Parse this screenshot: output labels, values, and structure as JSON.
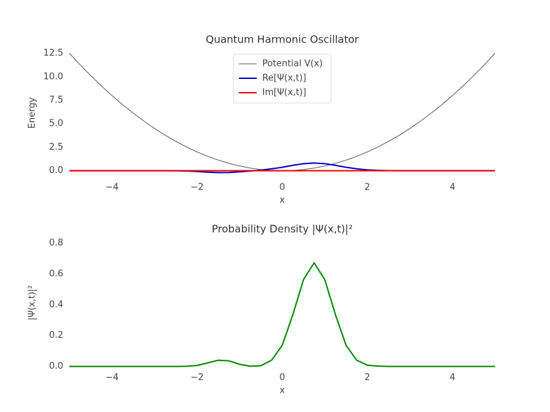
{
  "chart_data": [
    {
      "type": "line",
      "title": "Quantum Harmonic Oscillator",
      "xlabel": "x",
      "ylabel": "Energy",
      "x": [
        -5,
        -4.75,
        -4.5,
        -4.25,
        -4,
        -3.75,
        -3.5,
        -3.25,
        -3,
        -2.75,
        -2.5,
        -2.25,
        -2,
        -1.75,
        -1.5,
        -1.25,
        -1,
        -0.75,
        -0.5,
        -0.25,
        0,
        0.25,
        0.5,
        0.75,
        1,
        1.25,
        1.5,
        1.75,
        2,
        2.25,
        2.5,
        2.75,
        3,
        3.25,
        3.5,
        3.75,
        4,
        4.25,
        4.5,
        4.75,
        5
      ],
      "series": [
        {
          "name": "Potential V(x)",
          "color": "#555555",
          "width": 1,
          "values": [
            12.5,
            11.28,
            10.13,
            9.03,
            8,
            7.03,
            6.13,
            5.28,
            4.5,
            3.78,
            3.13,
            2.53,
            2,
            1.53,
            1.13,
            0.78,
            0.5,
            0.28,
            0.13,
            0.03,
            0,
            0.03,
            0.13,
            0.28,
            0.5,
            0.78,
            1.13,
            1.53,
            2,
            2.53,
            3.13,
            3.78,
            4.5,
            5.28,
            6.13,
            7.03,
            8,
            9.03,
            10.13,
            11.28,
            12.5
          ]
        },
        {
          "name": "Re[Ψ(x,t)]",
          "color": "#0000cc",
          "width": 2,
          "values": [
            0,
            0,
            0,
            0,
            0,
            0,
            0,
            0,
            0,
            0,
            -0.01,
            -0.03,
            -0.08,
            -0.15,
            -0.2,
            -0.19,
            -0.12,
            -0.03,
            0.07,
            0.2,
            0.37,
            0.58,
            0.75,
            0.82,
            0.75,
            0.58,
            0.37,
            0.2,
            0.09,
            0.04,
            0.01,
            0,
            0,
            0,
            0,
            0,
            0,
            0,
            0,
            0,
            0
          ]
        },
        {
          "name": "Im[Ψ(x,t)]",
          "color": "#ee0000",
          "width": 2,
          "values": [
            0,
            0,
            0,
            0,
            0,
            0,
            0,
            0,
            0,
            0,
            0,
            0,
            0,
            0,
            0,
            0,
            0,
            0,
            0,
            0,
            0,
            0,
            0,
            0,
            0,
            0,
            0,
            0,
            0,
            0,
            0,
            0,
            0,
            0,
            0,
            0,
            0,
            0,
            0,
            0,
            0
          ]
        }
      ],
      "xlim": [
        -5,
        5
      ],
      "ylim": [
        -0.83,
        13.13
      ],
      "xticks": [
        {
          "value": -4,
          "label": "−4"
        },
        {
          "value": -2,
          "label": "−2"
        },
        0,
        2,
        4
      ],
      "yticks": [
        {
          "value": 0,
          "label": "0.0"
        },
        {
          "value": 2.5,
          "label": "2.5"
        },
        {
          "value": 5,
          "label": "5.0"
        },
        {
          "value": 7.5,
          "label": "7.5"
        },
        {
          "value": 10,
          "label": "10.0"
        },
        {
          "value": 12.5,
          "label": "12.5"
        }
      ],
      "legend": "upper center",
      "grid": false
    },
    {
      "type": "line",
      "title": "Probability Density |Ψ(x,t)|²",
      "xlabel": "x",
      "ylabel": "|Ψ(x,t)|²",
      "x": [
        -5,
        -4.75,
        -4.5,
        -4.25,
        -4,
        -3.75,
        -3.5,
        -3.25,
        -3,
        -2.75,
        -2.5,
        -2.25,
        -2,
        -1.75,
        -1.5,
        -1.25,
        -1,
        -0.75,
        -0.5,
        -0.25,
        0,
        0.25,
        0.5,
        0.75,
        1,
        1.25,
        1.5,
        1.75,
        2,
        2.25,
        2.5,
        2.75,
        3,
        3.25,
        3.5,
        3.75,
        4,
        4.25,
        4.5,
        4.75,
        5
      ],
      "series": [
        {
          "color": "#008800",
          "width": 2,
          "values": [
            0,
            0,
            0,
            0,
            0,
            0,
            0,
            0,
            0,
            0,
            0,
            0.001,
            0.006,
            0.023,
            0.04,
            0.036,
            0.014,
            0.001,
            0.005,
            0.04,
            0.137,
            0.336,
            0.563,
            0.672,
            0.563,
            0.336,
            0.137,
            0.04,
            0.008,
            0.002,
            0,
            0,
            0,
            0,
            0,
            0,
            0,
            0,
            0,
            0,
            0
          ]
        }
      ],
      "xlim": [
        -5,
        5
      ],
      "ylim": [
        -0.015,
        0.84
      ],
      "xticks": [
        {
          "value": -4,
          "label": "−4"
        },
        {
          "value": -2,
          "label": "−2"
        },
        0,
        2,
        4
      ],
      "yticks": [
        {
          "value": 0,
          "label": "0.0"
        },
        {
          "value": 0.2,
          "label": "0.2"
        },
        {
          "value": 0.4,
          "label": "0.4"
        },
        {
          "value": 0.6,
          "label": "0.6"
        },
        {
          "value": 0.8,
          "label": "0.8"
        }
      ],
      "grid": false
    }
  ]
}
